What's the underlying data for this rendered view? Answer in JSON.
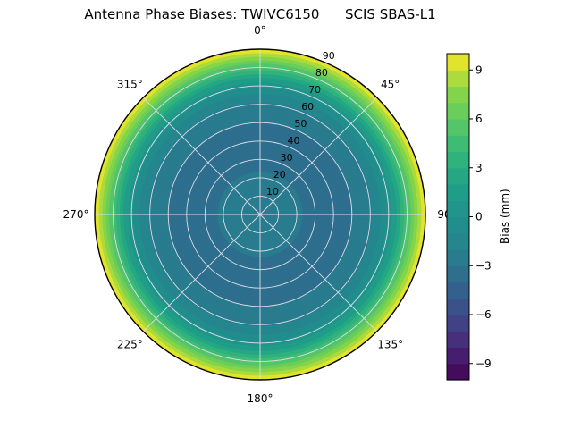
{
  "chart_data": {
    "type": "polar_contour",
    "title": "Antenna Phase Biases: TWIVC6150      SCIS SBAS-L1",
    "colormap": "viridis",
    "theta_zero_location": "top",
    "theta_direction": "clockwise",
    "theta_tick_labels": [
      {
        "deg": 0,
        "label": "0°"
      },
      {
        "deg": 45,
        "label": "45°"
      },
      {
        "deg": 90,
        "label": "90"
      },
      {
        "deg": 135,
        "label": "135°"
      },
      {
        "deg": 180,
        "label": "180°"
      },
      {
        "deg": 225,
        "label": "225°"
      },
      {
        "deg": 270,
        "label": "270°"
      },
      {
        "deg": 315,
        "label": "315°"
      }
    ],
    "r_max_deg": 90,
    "r_tick_step_deg": 10,
    "r_tick_labels": [
      "10",
      "20",
      "30",
      "40",
      "50",
      "60",
      "70",
      "80",
      "90"
    ],
    "r_label_azimuth_deg": 22.5,
    "contour_level_step_mm": 1,
    "vmin_mm": -10,
    "vmax_mm": 10,
    "radial_profile": {
      "zenith_deg": [
        0,
        10,
        20,
        30,
        40,
        50,
        55,
        60,
        65,
        70,
        75,
        80,
        85,
        90
      ],
      "bias_mm": [
        -2.2,
        -2.5,
        -2.9,
        -3.2,
        -3.3,
        -3.0,
        -2.7,
        -2.2,
        -1.2,
        0.2,
        2.2,
        4.8,
        7.5,
        10.0
      ]
    },
    "colorbar": {
      "label": "Bias (mm)",
      "ticks": [
        9,
        6,
        3,
        0,
        -3,
        -6,
        -9
      ],
      "tick_labels": [
        "9",
        "6",
        "3",
        "0",
        "−3",
        "−6",
        "−9"
      ]
    },
    "colors": {
      "grid": "#dcdce8",
      "outline": "#000000",
      "text": "#000000",
      "background": "#ffffff",
      "viridis_stops": [
        "#440154",
        "#482878",
        "#3e4989",
        "#31688e",
        "#26828e",
        "#21918c",
        "#1fa187",
        "#35b779",
        "#5ec962",
        "#90d743",
        "#fde725"
      ]
    }
  }
}
